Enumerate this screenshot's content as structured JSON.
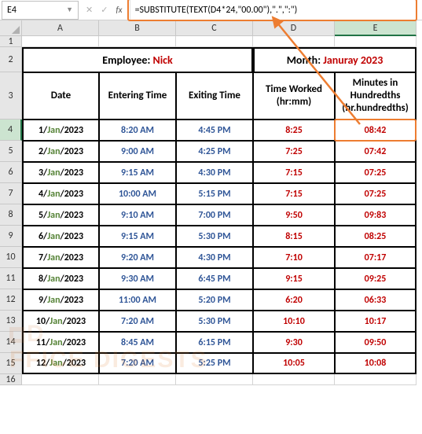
{
  "activeCell": "E4",
  "formula": "=SUBSTITUTE(TEXT(D4*24,\"00.00\"),\".\",\":\")",
  "columns": [
    "A",
    "B",
    "C",
    "D",
    "E"
  ],
  "mergeLeft": {
    "label": "Employee: ",
    "value": "Nick"
  },
  "mergeRight": {
    "label": "Month: ",
    "value": "Januray 2023"
  },
  "headers": {
    "date": "Date",
    "enter": "Entering Time",
    "exit": "Exiting Time",
    "worked": "Time Worked (hr:mm)",
    "hund": "Minutes in Hundredths (hr.hundredths)"
  },
  "rows": [
    {
      "n": 4,
      "date": "1/Jan/2023",
      "enter": "8:20 AM",
      "exit": "4:45 PM",
      "worked": "8:25",
      "hund": "08:42",
      "active": true
    },
    {
      "n": 5,
      "date": "2/Jan/2023",
      "enter": "9:00 AM",
      "exit": "4:25 PM",
      "worked": "7:25",
      "hund": "07:42"
    },
    {
      "n": 6,
      "date": "3/Jan/2023",
      "enter": "9:15 AM",
      "exit": "4:30 PM",
      "worked": "7:15",
      "hund": "07:25"
    },
    {
      "n": 7,
      "date": "4/Jan/2023",
      "enter": "10:00 AM",
      "exit": "5:15 PM",
      "worked": "7:15",
      "hund": "07:25"
    },
    {
      "n": 8,
      "date": "5/Jan/2023",
      "enter": "9:10 AM",
      "exit": "7:00 PM",
      "worked": "9:50",
      "hund": "09:83"
    },
    {
      "n": 9,
      "date": "6/Jan/2023",
      "enter": "9:15 AM",
      "exit": "5:30 PM",
      "worked": "8:15",
      "hund": "08:25"
    },
    {
      "n": 10,
      "date": "7/Jan/2023",
      "enter": "9:20 AM",
      "exit": "4:30 PM",
      "worked": "7:10",
      "hund": "07:17"
    },
    {
      "n": 11,
      "date": "8/Jan/2023",
      "enter": "9:30 AM",
      "exit": "6:45 PM",
      "worked": "9:15",
      "hund": "09:25"
    },
    {
      "n": 12,
      "date": "9/Jan/2023",
      "enter": "11:00 AM",
      "exit": "5:20 PM",
      "worked": "6:20",
      "hund": "06:33"
    },
    {
      "n": 13,
      "date": "10/Jan/2023",
      "enter": "7:20 AM",
      "exit": "5:30 PM",
      "worked": "10:10",
      "hund": "10:17"
    },
    {
      "n": 14,
      "date": "11/Jan/2023",
      "enter": "8:45 AM",
      "exit": "6:15 PM",
      "worked": "9:30",
      "hund": "09:50"
    },
    {
      "n": 15,
      "date": "12/Jan/2023",
      "enter": "7:20 AM",
      "exit": "5:25 PM",
      "worked": "10:05",
      "hund": "10:08"
    }
  ],
  "colors": {
    "highlight_border": "#ed7d31",
    "green_text": "#548235",
    "blue_text": "#2f5597",
    "red_text": "#c00000",
    "grid_header_bg": "#e6e6e6",
    "active_header_bg": "#cce4d0",
    "excel_green": "#217346"
  },
  "watermark": "FFICE DIGESTS"
}
